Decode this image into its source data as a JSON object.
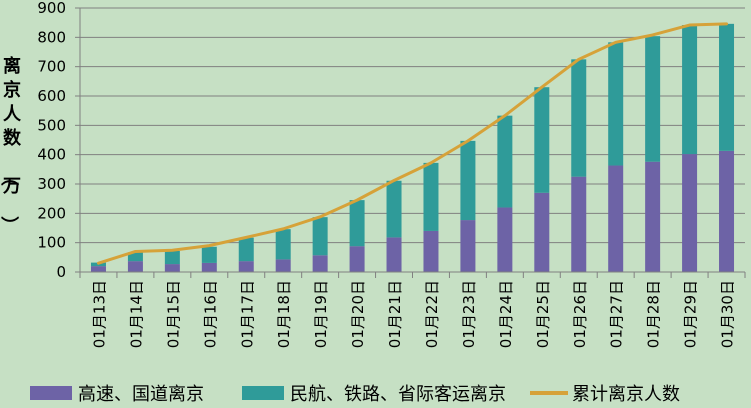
{
  "chart_data": {
    "type": "bar",
    "stacked": true,
    "title": "",
    "xlabel": "",
    "ylabel": "离京人数（万）",
    "ylim": [
      0,
      900
    ],
    "yticks": [
      0,
      100,
      200,
      300,
      400,
      500,
      600,
      700,
      800,
      900
    ],
    "grid": "horizontal",
    "legend_position": "bottom",
    "categories": [
      "01月13日",
      "01月14日",
      "01月15日",
      "01月16日",
      "01月17日",
      "01月18日",
      "01月19日",
      "01月20日",
      "01月21日",
      "01月22日",
      "01月23日",
      "01月24日",
      "01月25日",
      "01月26日",
      "01月27日",
      "01月28日",
      "01月29日",
      "01月30日"
    ],
    "series": [
      {
        "name": "高速、国道离京",
        "kind": "bar",
        "color": "#6d63a6",
        "values": [
          20,
          37,
          27,
          31,
          37,
          43,
          57,
          88,
          118,
          140,
          177,
          220,
          270,
          325,
          363,
          376,
          402,
          413
        ]
      },
      {
        "name": "民航、铁路、省际客运离京",
        "kind": "bar",
        "color": "#2f9b99",
        "values": [
          12,
          30,
          45,
          55,
          80,
          103,
          130,
          157,
          193,
          232,
          270,
          313,
          360,
          400,
          420,
          428,
          440,
          433
        ]
      },
      {
        "name": "累计离京人数",
        "kind": "line",
        "color": "#d6a239",
        "values": [
          30,
          70,
          74,
          90,
          118,
          147,
          188,
          245,
          312,
          372,
          447,
          533,
          630,
          725,
          783,
          808,
          842,
          846
        ]
      }
    ]
  }
}
